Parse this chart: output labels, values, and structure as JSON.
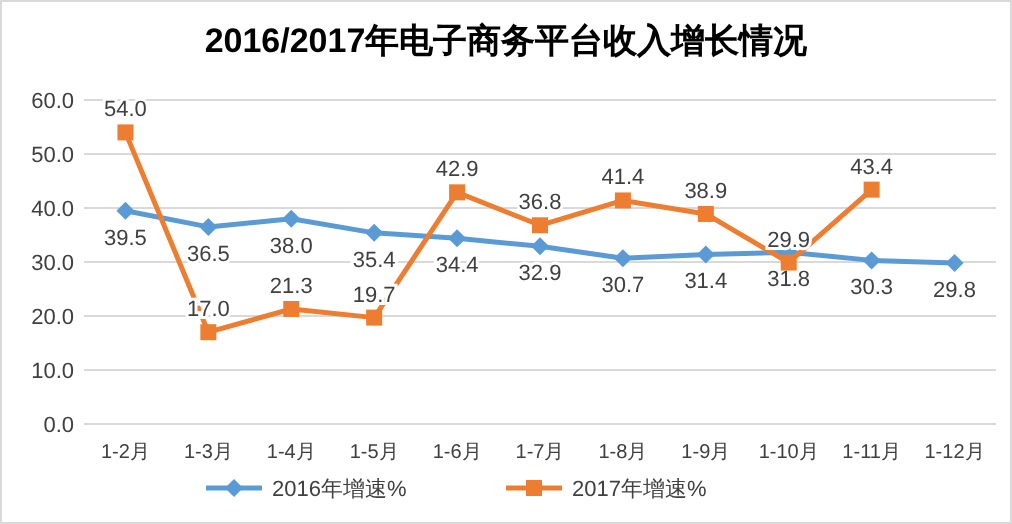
{
  "chart_data": {
    "type": "line",
    "title": "2016/2017年电子商务平台收入增长情况",
    "categories": [
      "1-2月",
      "1-3月",
      "1-4月",
      "1-5月",
      "1-6月",
      "1-7月",
      "1-8月",
      "1-9月",
      "1-10月",
      "1-11月",
      "1-12月"
    ],
    "series": [
      {
        "name": "2016年增速%",
        "color": "#5b9bd5",
        "marker": "diamond",
        "values": [
          39.5,
          36.5,
          38.0,
          35.4,
          34.4,
          32.9,
          30.7,
          31.4,
          31.8,
          30.3,
          29.8
        ],
        "value_labels": [
          "39.5",
          "36.5",
          "38.0",
          "35.4",
          "34.4",
          "32.9",
          "30.7",
          "31.4",
          "31.8",
          "30.3",
          "29.8"
        ]
      },
      {
        "name": "2017年增速%",
        "color": "#ed7d31",
        "marker": "square",
        "values": [
          54.0,
          17.0,
          21.3,
          19.7,
          42.9,
          36.8,
          41.4,
          38.9,
          29.9,
          43.4,
          null
        ],
        "value_labels": [
          "54.0",
          "17.0",
          "21.3",
          "19.7",
          "42.9",
          "36.8",
          "41.4",
          "38.9",
          "29.9",
          "43.4",
          null
        ]
      }
    ],
    "ylim": [
      0,
      60
    ],
    "yticks": [
      {
        "value": 0,
        "label": "0.0"
      },
      {
        "value": 10,
        "label": "10.0"
      },
      {
        "value": 20,
        "label": "20.0"
      },
      {
        "value": 30,
        "label": "30.0"
      },
      {
        "value": 40,
        "label": "40.0"
      },
      {
        "value": 50,
        "label": "50.0"
      },
      {
        "value": 60,
        "label": "60.0"
      }
    ],
    "grid": "y",
    "legend": "bottom",
    "line_style": "solid"
  }
}
